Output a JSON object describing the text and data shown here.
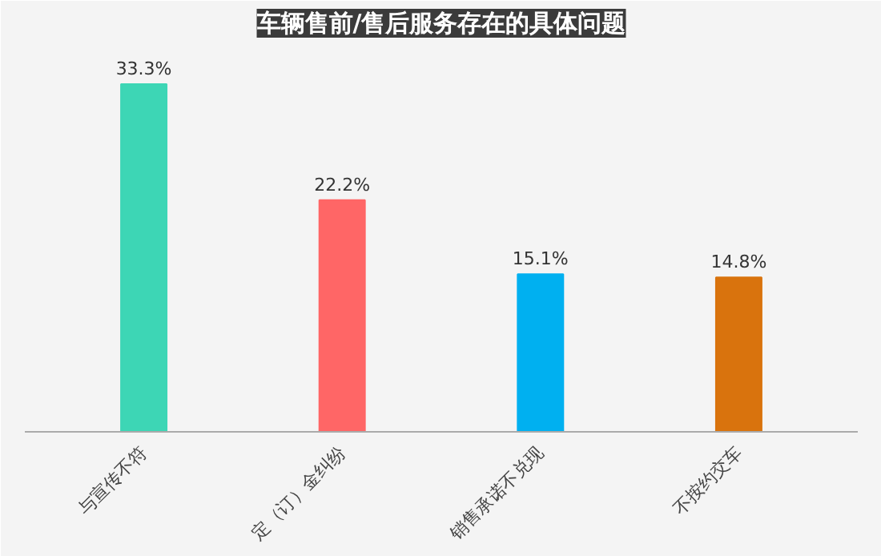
{
  "chart_data": {
    "type": "bar",
    "title": "车辆售前/售后服务存在的具体问题",
    "categories": [
      "与宣传不符",
      "定（订）金纠纷",
      "销售承诺不兑现",
      "不按约交车"
    ],
    "values": [
      33.3,
      22.2,
      15.1,
      14.8
    ],
    "value_labels": [
      "33.3%",
      "22.2%",
      "15.1%",
      "14.8%"
    ],
    "colors": [
      "#3dd6b5",
      "#ff6666",
      "#00b0f0",
      "#d9730d"
    ],
    "tick_labels": "x",
    "grid": false
  }
}
